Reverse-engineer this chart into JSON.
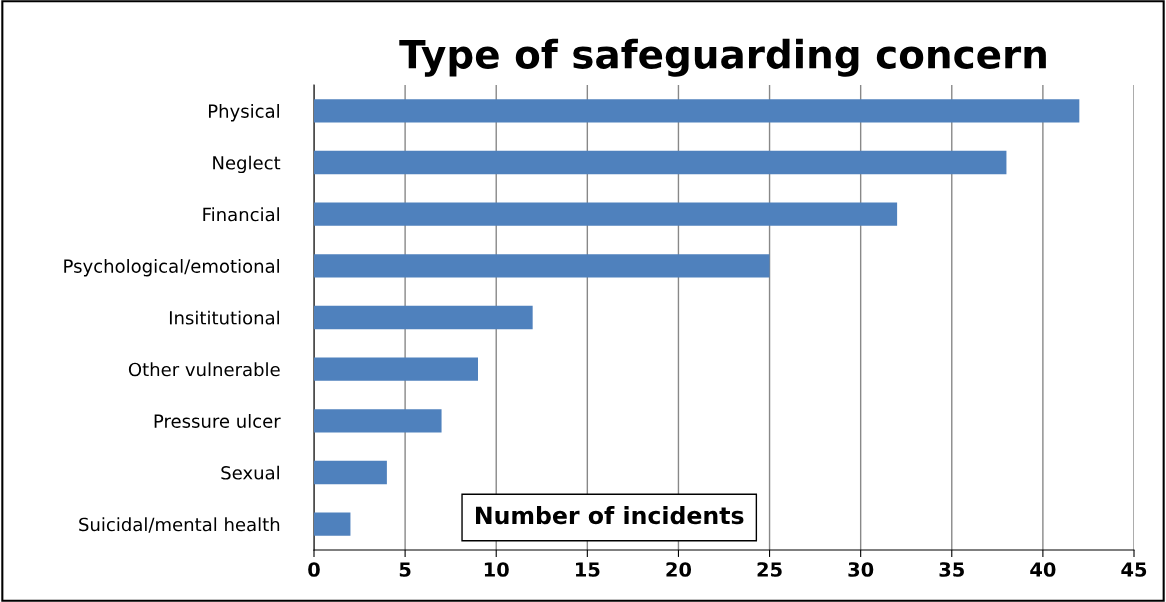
{
  "chart_data": {
    "type": "bar",
    "orientation": "horizontal",
    "title": "Type of safeguarding concern",
    "xlabel": "Number of incidents",
    "categories": [
      "Physical",
      "Neglect",
      "Financial",
      "Psychological/emotional",
      "Insititutional",
      "Other vulnerable",
      "Pressure ulcer",
      "Sexual",
      "Suicidal/mental health"
    ],
    "values": [
      42,
      38,
      32,
      25,
      12,
      9,
      7,
      4,
      2
    ],
    "color": "#4f81bd",
    "xlim": [
      0,
      45
    ],
    "xticks": [
      0,
      5,
      10,
      15,
      20,
      25,
      30,
      35,
      40,
      45
    ],
    "grid": "x",
    "legend": false
  }
}
